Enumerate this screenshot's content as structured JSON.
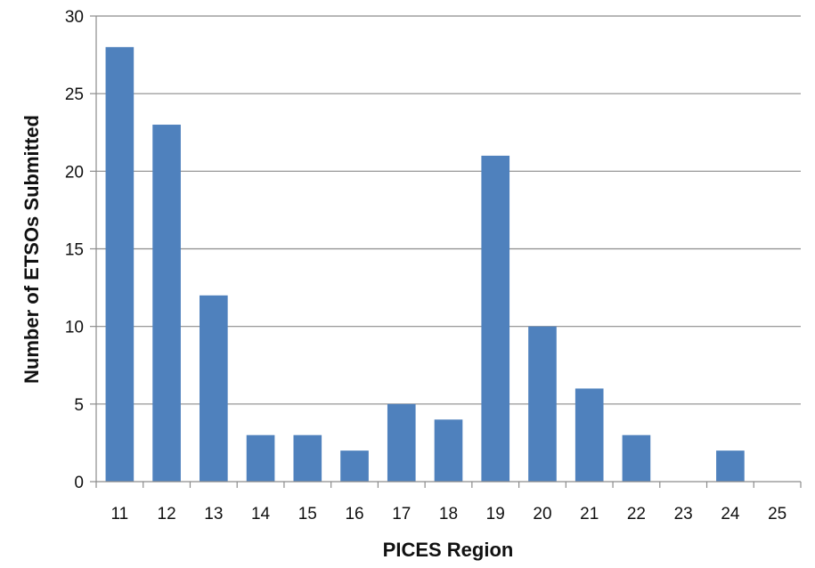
{
  "chart_data": {
    "type": "bar",
    "title": "",
    "xlabel": "PICES Region",
    "ylabel": "Number  of  ETSOs  Submitted",
    "categories": [
      "11",
      "12",
      "13",
      "14",
      "15",
      "16",
      "17",
      "18",
      "19",
      "20",
      "21",
      "22",
      "23",
      "24",
      "25"
    ],
    "values": [
      28,
      23,
      12,
      3,
      3,
      2,
      5,
      4,
      21,
      10,
      6,
      3,
      0,
      2,
      0
    ],
    "ylim": [
      0,
      30
    ],
    "yticks": [
      0,
      5,
      10,
      15,
      20,
      25,
      30
    ],
    "grid": true,
    "legend": "none",
    "colors": {
      "bar": "#4f81bd",
      "grid": "#8c8c8c",
      "axis": "#8c8c8c"
    }
  }
}
